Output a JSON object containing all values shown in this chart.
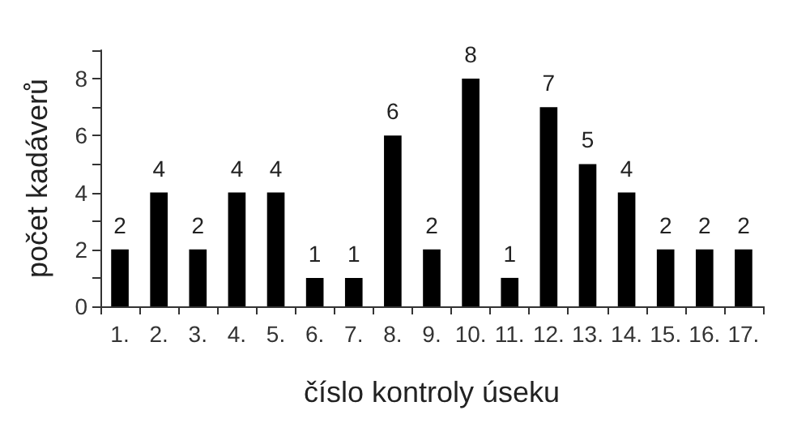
{
  "chart_data": {
    "type": "bar",
    "xlabel": "číslo kontroly úseku",
    "ylabel": "počet kadáverů",
    "categories": [
      "1.",
      "2.",
      "3.",
      "4.",
      "5.",
      "6.",
      "7.",
      "8.",
      "9.",
      "10.",
      "11.",
      "12.",
      "13.",
      "14.",
      "15.",
      "16.",
      "17."
    ],
    "values": [
      2,
      4,
      2,
      4,
      4,
      1,
      1,
      6,
      2,
      8,
      1,
      7,
      5,
      4,
      2,
      2,
      2
    ],
    "color": "#000000",
    "ylim": [
      0,
      9
    ],
    "yticks": [
      0,
      {
        "value": 1,
        "label": null
      },
      2,
      {
        "value": 3,
        "label": null
      },
      4,
      {
        "value": 5,
        "label": null
      },
      6,
      {
        "value": 7,
        "label": null
      },
      8,
      {
        "value": 9,
        "label": null
      }
    ],
    "data_labels": true
  }
}
